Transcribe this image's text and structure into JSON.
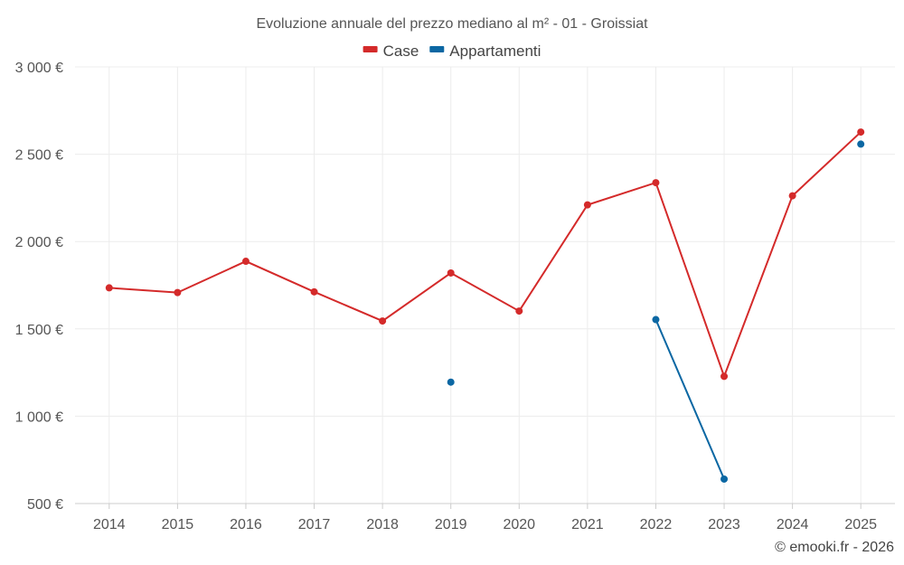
{
  "chart_data": {
    "type": "line",
    "title": "Evoluzione annuale del prezzo mediano al m² - 01 - Groissiat",
    "categories": [
      "2014",
      "2015",
      "2016",
      "2017",
      "2018",
      "2019",
      "2020",
      "2021",
      "2022",
      "2023",
      "2024",
      "2025"
    ],
    "ylim": [
      500,
      3000
    ],
    "yticks": [
      500,
      1000,
      1500,
      2000,
      2500,
      3000
    ],
    "ytick_labels": [
      "500 €",
      "1 000 €",
      "1 500 €",
      "2 000 €",
      "2 500 €",
      "3 000 €"
    ],
    "grid": true,
    "legend_position": "top-center",
    "series": [
      {
        "name": "Case",
        "color": "#d42a2a",
        "values": [
          1735,
          1708,
          1887,
          1712,
          1545,
          1820,
          1602,
          2210,
          2337,
          1228,
          2262,
          2627
        ]
      },
      {
        "name": "Appartamenti",
        "color": "#0b67a3",
        "values": [
          null,
          null,
          null,
          null,
          null,
          1195,
          null,
          null,
          1553,
          640,
          null,
          2558
        ]
      }
    ],
    "credit": "© emooki.fr - 2026"
  }
}
